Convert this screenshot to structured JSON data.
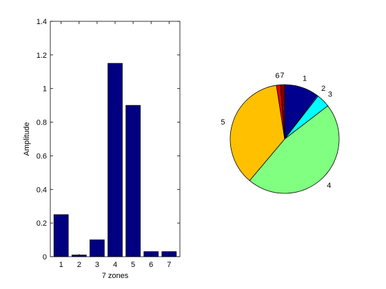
{
  "chart_data": [
    {
      "type": "bar",
      "categories": [
        "1",
        "2",
        "3",
        "4",
        "5",
        "6",
        "7"
      ],
      "values": [
        0.25,
        0.01,
        0.1,
        1.15,
        0.9,
        0.03,
        0.03
      ],
      "xlabel": "7 zones",
      "ylabel": "Amplitude",
      "ylim": [
        0,
        1.4
      ],
      "yticks": [
        "0",
        "0.2",
        "0.4",
        "0.6",
        "0.8",
        "1",
        "1.2",
        "1.4"
      ],
      "bar_color": "#000080",
      "grid": false
    },
    {
      "type": "pie",
      "labels": [
        "1",
        "2",
        "3",
        "4",
        "5",
        "6",
        "7"
      ],
      "values": [
        0.25,
        0.01,
        0.1,
        1.15,
        0.9,
        0.03,
        0.03
      ],
      "colors": [
        "#00008F",
        "#0040FF",
        "#00FFFF",
        "#80FF80",
        "#FFC000",
        "#E00000",
        "#800000"
      ]
    }
  ]
}
